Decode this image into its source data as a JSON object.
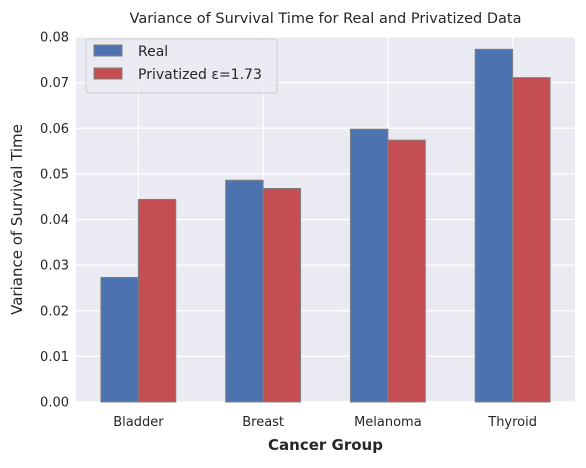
{
  "chart_data": {
    "type": "bar",
    "title": "Variance of Survival Time for Real and Privatized Data",
    "xlabel": "Cancer Group",
    "ylabel": "Variance of Survival Time",
    "categories": [
      "Bladder",
      "Breast",
      "Melanoma",
      "Thyroid"
    ],
    "ylim": [
      0,
      0.08
    ],
    "yticks": [
      "0.00",
      "0.01",
      "0.02",
      "0.03",
      "0.04",
      "0.05",
      "0.06",
      "0.07",
      "0.08"
    ],
    "grid": true,
    "legend_position": "top-left",
    "series": [
      {
        "name": "Real",
        "color": "#4c72b0",
        "values": [
          0.0273,
          0.0486,
          0.0598,
          0.0773
        ]
      },
      {
        "name": "Privatized ε=1.73",
        "color": "#c44e52",
        "values": [
          0.0444,
          0.0468,
          0.0574,
          0.0711
        ]
      }
    ],
    "background_color": "#eaeaf2",
    "bar_edge_color": "#808080"
  }
}
